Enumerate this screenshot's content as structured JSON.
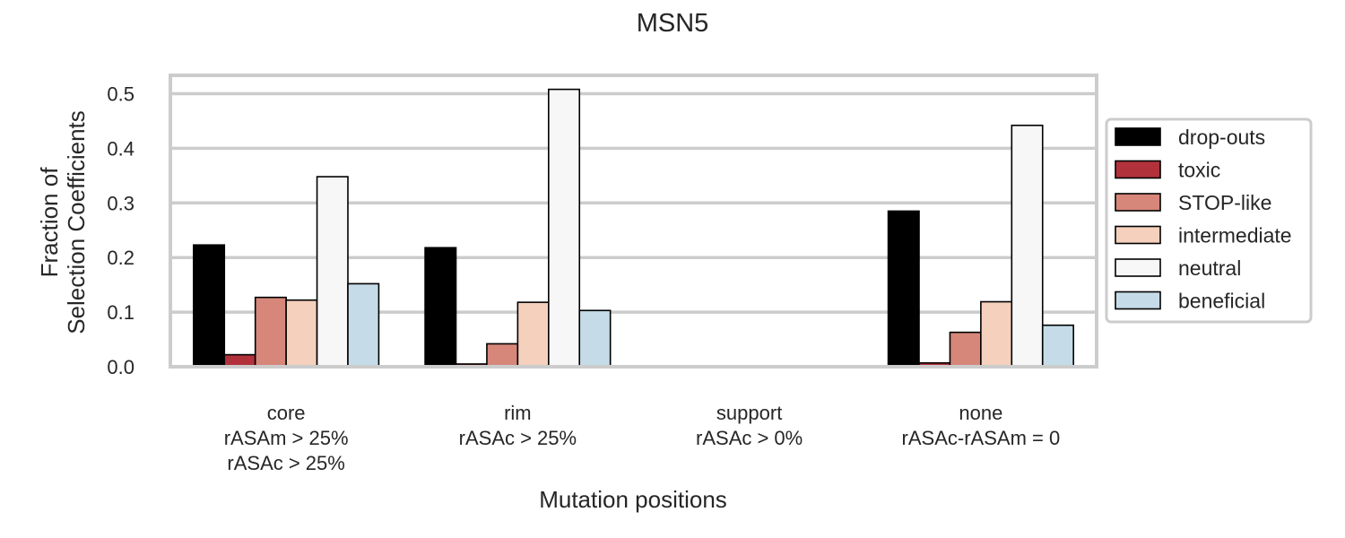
{
  "chart_data": {
    "type": "bar",
    "title": "MSN5",
    "xlabel": "Mutation positions",
    "ylabel": [
      "Fraction of",
      "Selection Coefficients"
    ],
    "ylim": [
      0,
      0.53
    ],
    "yticks": [
      "0.0",
      "0.1",
      "0.2",
      "0.3",
      "0.4",
      "0.5"
    ],
    "grid": true,
    "legend_position": "right, outside plot",
    "categories": [
      [
        "core",
        "rASAm > 25%",
        "rASAc > 25%"
      ],
      [
        "rim",
        "rASAc > 25%"
      ],
      [
        "support",
        "rASAc > 0%"
      ],
      [
        "none",
        "rASAc-rASAm = 0"
      ]
    ],
    "series": [
      {
        "name": "drop-outs",
        "color": "#000000",
        "values": [
          0.223,
          0.218,
          0,
          0.285
        ]
      },
      {
        "name": "toxic",
        "color": "#b2323c",
        "values": [
          0.022,
          0.005,
          0,
          0.007
        ]
      },
      {
        "name": "STOP-like",
        "color": "#d6877a",
        "values": [
          0.127,
          0.042,
          0,
          0.063
        ]
      },
      {
        "name": "intermediate",
        "color": "#f5d0bd",
        "values": [
          0.122,
          0.118,
          0,
          0.119
        ]
      },
      {
        "name": "neutral",
        "color": "#f6f7f6",
        "values": [
          0.348,
          0.508,
          0,
          0.442
        ]
      },
      {
        "name": "beneficial",
        "color": "#c5dce8",
        "values": [
          0.152,
          0.103,
          0,
          0.076
        ]
      }
    ]
  }
}
